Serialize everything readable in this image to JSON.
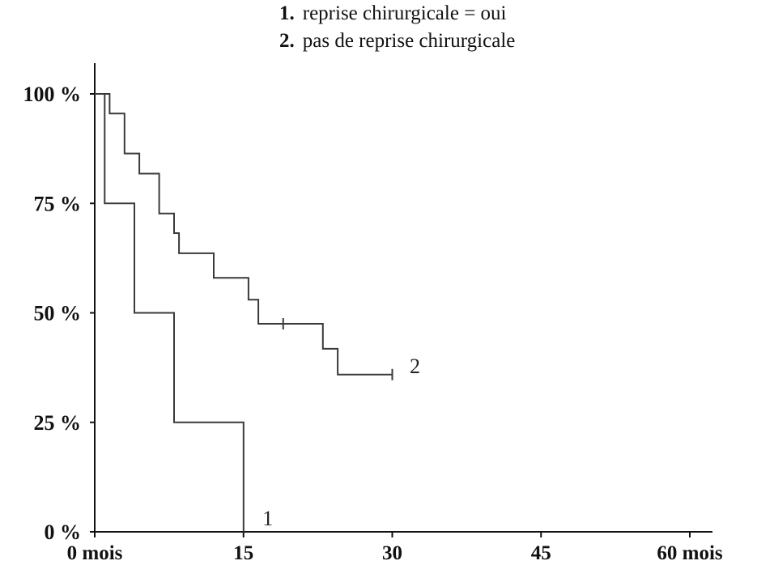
{
  "chart_data": {
    "type": "line",
    "step": true,
    "title": "",
    "xlabel": "",
    "ylabel": "",
    "xlim": [
      0,
      60
    ],
    "ylim": [
      0,
      100
    ],
    "x_ticks": [
      {
        "value": 0,
        "label": "0 mois"
      },
      {
        "value": 15,
        "label": "15"
      },
      {
        "value": 30,
        "label": "30"
      },
      {
        "value": 45,
        "label": "45"
      },
      {
        "value": 60,
        "label": "60 mois"
      }
    ],
    "y_ticks": [
      {
        "value": 0,
        "label": "0 %"
      },
      {
        "value": 25,
        "label": "25 %"
      },
      {
        "value": 50,
        "label": "50 %"
      },
      {
        "value": 75,
        "label": "75 %"
      },
      {
        "value": 100,
        "label": "100 %"
      }
    ],
    "legend": [
      {
        "number": "1.",
        "text": "reprise chirurgicale = oui"
      },
      {
        "number": "2.",
        "text": "pas de reprise chirurgicale"
      }
    ],
    "series": [
      {
        "label": "1",
        "color": "#3a3a3a",
        "points": [
          [
            0,
            100
          ],
          [
            1,
            100
          ],
          [
            1,
            75
          ],
          [
            4,
            75
          ],
          [
            4,
            50
          ],
          [
            8,
            50
          ],
          [
            8,
            25
          ],
          [
            15,
            25
          ],
          [
            15,
            0
          ]
        ],
        "censored": []
      },
      {
        "label": "2",
        "color": "#3a3a3a",
        "points": [
          [
            0,
            100
          ],
          [
            1.5,
            100
          ],
          [
            1.5,
            95.5
          ],
          [
            3,
            95.5
          ],
          [
            3,
            86.4
          ],
          [
            4.5,
            86.4
          ],
          [
            4.5,
            81.8
          ],
          [
            6.5,
            81.8
          ],
          [
            6.5,
            72.7
          ],
          [
            8,
            72.7
          ],
          [
            8,
            68.2
          ],
          [
            8.5,
            68.2
          ],
          [
            8.5,
            63.6
          ],
          [
            12,
            63.6
          ],
          [
            12,
            58
          ],
          [
            15.5,
            58
          ],
          [
            15.5,
            53
          ],
          [
            16.5,
            53
          ],
          [
            16.5,
            47.5
          ],
          [
            23,
            47.5
          ],
          [
            23,
            41.8
          ],
          [
            24.5,
            41.8
          ],
          [
            24.5,
            35.9
          ],
          [
            30,
            35.9
          ]
        ],
        "censored": [
          [
            19,
            47.5
          ],
          [
            30,
            35.9
          ]
        ]
      }
    ]
  }
}
